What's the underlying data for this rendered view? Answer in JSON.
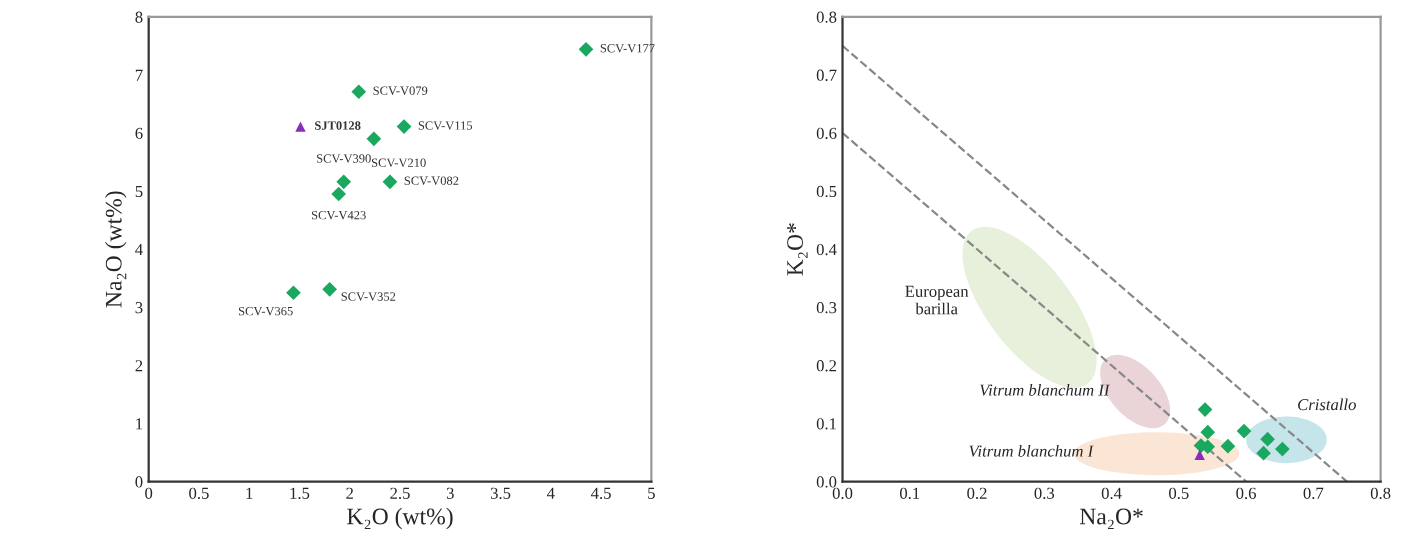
{
  "chart_data": [
    {
      "type": "scatter",
      "xlabel": "K₂O (wt%)",
      "ylabel": "Na₂O (wt%)",
      "xlim": [
        0,
        5
      ],
      "ylim": [
        0,
        8
      ],
      "xticks": [
        0,
        0.5,
        1,
        1.5,
        2,
        2.5,
        3,
        3.5,
        4,
        4.5,
        5
      ],
      "yticks": [
        0,
        1,
        2,
        3,
        4,
        5,
        6,
        7,
        8
      ],
      "grid": false,
      "legend": false,
      "series": [
        {
          "color": "#1aa860",
          "marker": "diamond",
          "x": [
            4.35,
            2.09,
            2.54,
            2.24,
            1.94,
            2.4,
            1.89,
            1.44,
            1.8
          ],
          "values": [
            7.44,
            6.71,
            6.11,
            5.9,
            5.16,
            5.16,
            4.95,
            3.25,
            3.31
          ],
          "value_labels": [
            "SCV-V177",
            "SCV-V079",
            "SCV-V115",
            "SCV-V210",
            "SCV-V390",
            "SCV-V082",
            "SCV-V423",
            "SCV-V365",
            "SCV-V352"
          ]
        },
        {
          "color": "#8a2fb5",
          "marker": "triangle",
          "x": [
            1.51
          ],
          "values": [
            6.11
          ],
          "value_labels": [
            "SJT0128"
          ]
        }
      ]
    },
    {
      "type": "scatter",
      "xlabel": "Na₂O*",
      "ylabel": "K₂O*",
      "xlim": [
        0,
        0.8
      ],
      "ylim": [
        0,
        0.8
      ],
      "xticks": [
        {
          "value": 0,
          "label": "0.0"
        },
        0.1,
        0.2,
        0.3,
        0.4,
        0.5,
        0.6,
        0.7,
        0.8
      ],
      "yticks": [
        {
          "value": 0,
          "label": "0.0"
        },
        0.1,
        0.2,
        0.3,
        0.4,
        0.5,
        0.6,
        0.7,
        0.8
      ],
      "grid": false,
      "legend": false,
      "annotations": [
        "European\nbarilla",
        "Vitrum blanchum II",
        "Vitrum blanchum I",
        "Cristallo"
      ],
      "series": [
        {
          "type": "line",
          "color": "#888888",
          "marker": "none",
          "line_style": "dashed",
          "x": [
            0,
            0.75
          ],
          "values": [
            0.75,
            0
          ]
        },
        {
          "type": "line",
          "color": "#888888",
          "marker": "none",
          "line_style": "dashed",
          "x": [
            0,
            0.6
          ],
          "values": [
            0.6,
            0
          ]
        },
        {
          "color": "#1aa860",
          "marker": "diamond",
          "x": [
            0.539,
            0.543,
            0.533,
            0.543,
            0.573,
            0.597,
            0.632,
            0.626,
            0.654
          ],
          "values": [
            0.124,
            0.085,
            0.062,
            0.06,
            0.061,
            0.087,
            0.073,
            0.049,
            0.056
          ]
        },
        {
          "color": "#8a2fb5",
          "marker": "triangle",
          "x": [
            0.531
          ],
          "values": [
            0.046
          ]
        }
      ]
    }
  ]
}
